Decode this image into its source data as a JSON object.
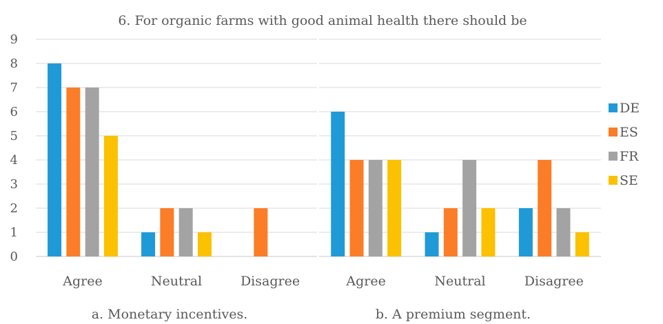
{
  "chart_data": {
    "type": "bar",
    "title": "6. For organic farms with good animal health there should be",
    "ylim": [
      0,
      9
    ],
    "yticks": [
      0,
      1,
      2,
      3,
      4,
      5,
      6,
      7,
      8,
      9
    ],
    "grid": true,
    "legend_position": "right",
    "categories": [
      "Agree",
      "Neutral",
      "Disagree"
    ],
    "series": [
      {
        "name": "DE",
        "color": "#1f9ad7"
      },
      {
        "name": "ES",
        "color": "#fb7d27"
      },
      {
        "name": "FR",
        "color": "#a3a3a3"
      },
      {
        "name": "SE",
        "color": "#fcc100"
      }
    ],
    "panels": [
      {
        "caption": "a. Monetary incentives.",
        "values": {
          "DE": [
            8,
            1,
            0
          ],
          "ES": [
            7,
            2,
            2
          ],
          "FR": [
            7,
            2,
            0
          ],
          "SE": [
            5,
            1,
            0
          ]
        }
      },
      {
        "caption": "b. A premium segment.",
        "values": {
          "DE": [
            6,
            1,
            2
          ],
          "ES": [
            4,
            2,
            4
          ],
          "FR": [
            4,
            4,
            2
          ],
          "SE": [
            4,
            2,
            1
          ]
        }
      }
    ]
  }
}
